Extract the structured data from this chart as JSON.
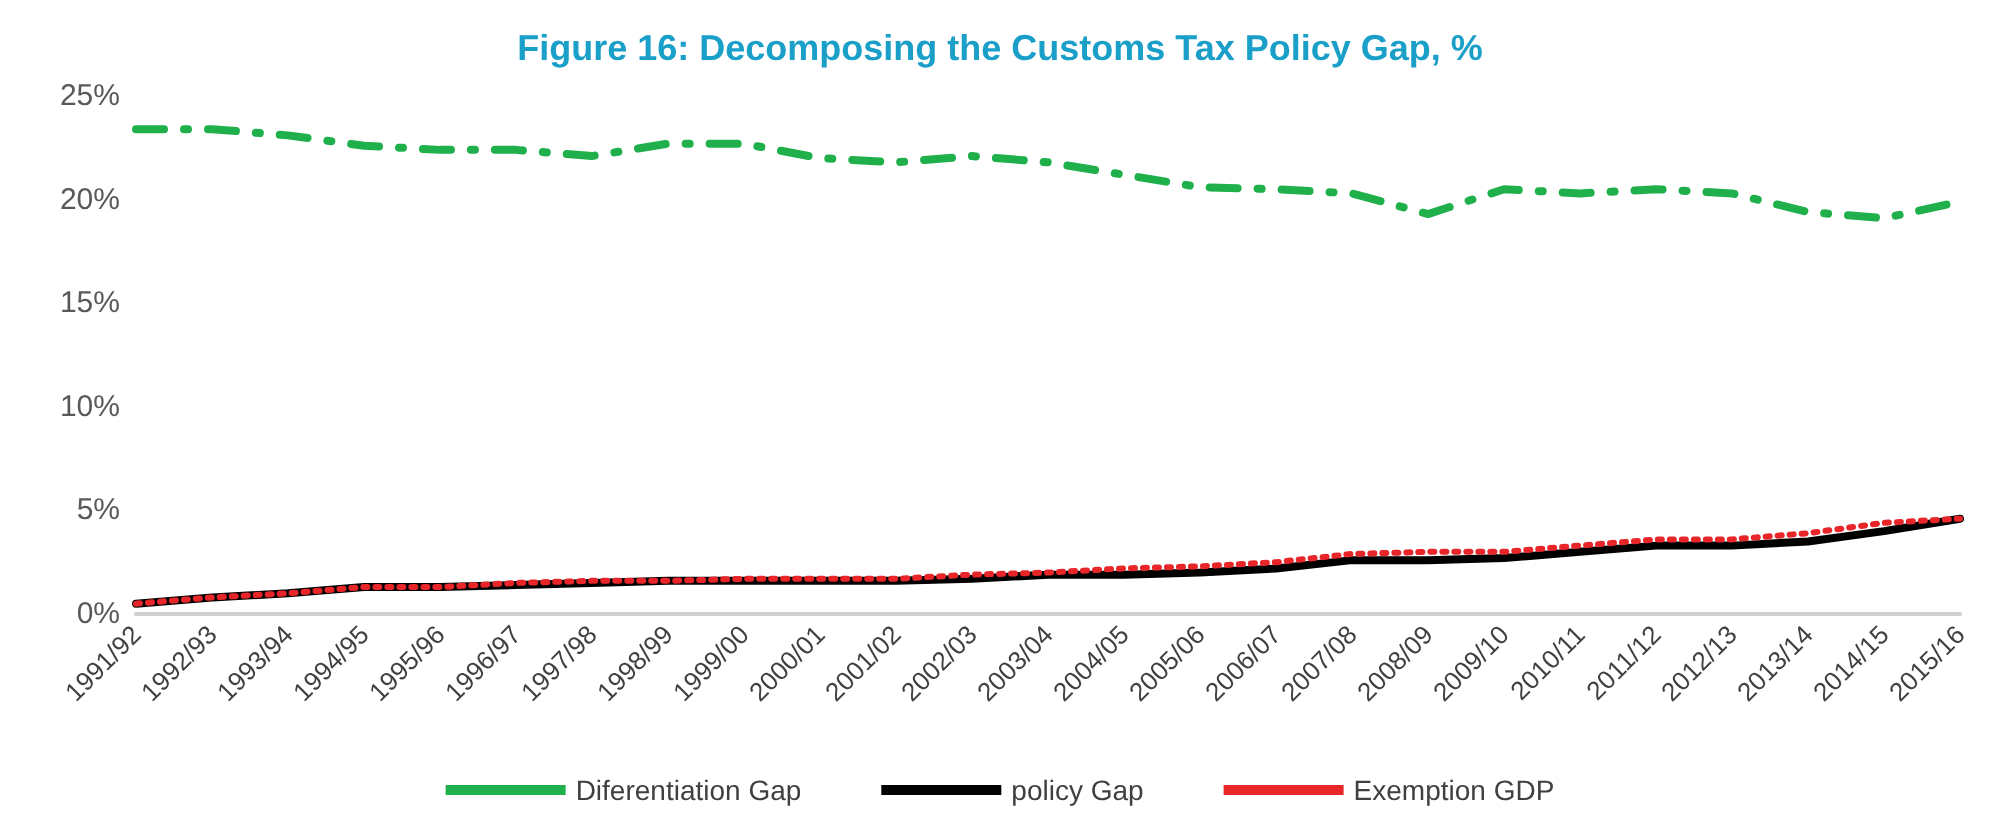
{
  "chart_data": {
    "type": "line",
    "title": "Figure 16: Decomposing the Customs Tax Policy Gap, %",
    "categories": [
      "1991/92",
      "1992/93",
      "1993/94",
      "1994/95",
      "1995/96",
      "1996/97",
      "1997/98",
      "1998/99",
      "1999/00",
      "2000/01",
      "2001/02",
      "2002/03",
      "2003/04",
      "2004/05",
      "2005/06",
      "2006/07",
      "2007/08",
      "2008/09",
      "2009/10",
      "2010/11",
      "2011/12",
      "2012/13",
      "2013/14",
      "2014/15",
      "2015/16"
    ],
    "series": [
      {
        "name": "Diferentiation Gap",
        "color": "#1fb04c",
        "line_style": "dashdot",
        "values": [
          23.4,
          23.4,
          23.1,
          22.6,
          22.4,
          22.4,
          22.1,
          22.7,
          22.7,
          22.0,
          21.8,
          22.1,
          21.8,
          21.2,
          20.6,
          20.5,
          20.3,
          19.3,
          20.5,
          20.3,
          20.5,
          20.3,
          19.4,
          19.1,
          19.9
        ]
      },
      {
        "name": "policy Gap",
        "color": "#000000",
        "line_style": "solid",
        "values": [
          0.5,
          0.8,
          1.0,
          1.3,
          1.3,
          1.4,
          1.5,
          1.6,
          1.6,
          1.6,
          1.6,
          1.7,
          1.9,
          1.9,
          2.0,
          2.2,
          2.6,
          2.6,
          2.7,
          3.0,
          3.3,
          3.3,
          3.5,
          4.0,
          4.6
        ]
      },
      {
        "name": "Exemption GDP",
        "color": "#e8262a",
        "line_style": "dotted",
        "values": [
          0.5,
          0.8,
          1.0,
          1.3,
          1.3,
          1.5,
          1.6,
          1.6,
          1.7,
          1.7,
          1.7,
          1.9,
          2.0,
          2.2,
          2.3,
          2.5,
          2.9,
          3.0,
          3.0,
          3.3,
          3.6,
          3.6,
          3.9,
          4.4,
          4.6
        ]
      }
    ],
    "ylim": [
      0,
      25
    ],
    "yticks": [
      {
        "value": 0,
        "label": "0%"
      },
      {
        "value": 5,
        "label": "5%"
      },
      {
        "value": 10,
        "label": "10%"
      },
      {
        "value": 15,
        "label": "15%"
      },
      {
        "value": 20,
        "label": "20%"
      },
      {
        "value": 25,
        "label": "25%"
      }
    ],
    "grid": false,
    "legend": "bottom",
    "marker": "none"
  }
}
